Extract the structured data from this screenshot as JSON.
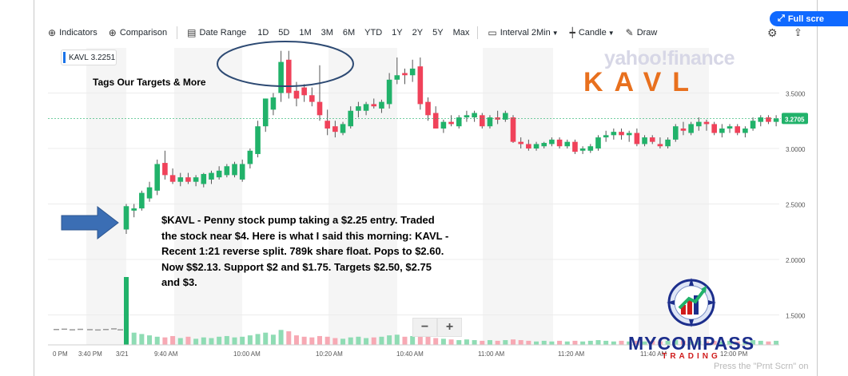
{
  "toolbar": {
    "indicators": "Indicators",
    "comparison": "Comparison",
    "date_range": "Date Range",
    "ranges": [
      "1D",
      "5D",
      "1M",
      "3M",
      "6M",
      "YTD",
      "1Y",
      "2Y",
      "5Y",
      "Max"
    ],
    "interval": "Interval",
    "interval_value": "2Min",
    "chart_style": "Candle",
    "draw": "Draw",
    "fullscreen": "Full scre"
  },
  "ticker_tag": {
    "symbol": "KAVL",
    "price": "3.2251"
  },
  "annotation_tags": "Tags Our Targets & More",
  "watermark": "yahoo!finance",
  "big_ticker": "KAVL",
  "commentary": "$KAVL - Penny stock pump taking a $2.25 entry.  Traded the stock near $4.  Here is what I said this morning: KAVL - Recent 1:21 reverse split. 789k share float.  Pops to $2.60.  Now $$2.13.  Support $2 and $1.75.  Targets $2.50, $2.75 and $3.",
  "logo": {
    "line1": "MYCOMPASS",
    "line2": "TRADING"
  },
  "zoom": {
    "minus": "−",
    "plus": "+"
  },
  "print_hint": "Press the \"Prnt Scrn\" on",
  "colors": {
    "up": "#21b26a",
    "down": "#f0425a",
    "accent": "#0f69ff",
    "arrow": "#3b6eb4",
    "ellipse": "#2d4a73",
    "ticker_orange": "#e8701e"
  },
  "chart_data": {
    "type": "candlestick",
    "y_ticks": [
      "3.5000",
      "3.0000",
      "2.5000",
      "2.0000",
      "1.5000"
    ],
    "x_ticks": [
      "0 PM",
      "3:40 PM",
      "3/21",
      "9:40 AM",
      "10:00 AM",
      "10:20 AM",
      "10:40 AM",
      "11:00 AM",
      "11:20 AM",
      "11:40 AM",
      "12:00 PM"
    ],
    "last_price_label": "3.2705",
    "ylim": [
      1.3,
      3.95
    ],
    "grid": true,
    "candles": [
      {
        "o": 2.27,
        "h": 2.5,
        "l": 2.23,
        "c": 2.48
      },
      {
        "o": 2.44,
        "h": 2.5,
        "l": 2.38,
        "c": 2.46
      },
      {
        "o": 2.46,
        "h": 2.62,
        "l": 2.44,
        "c": 2.6
      },
      {
        "o": 2.55,
        "h": 2.7,
        "l": 2.52,
        "c": 2.65
      },
      {
        "o": 2.62,
        "h": 2.9,
        "l": 2.58,
        "c": 2.86
      },
      {
        "o": 2.87,
        "h": 2.98,
        "l": 2.72,
        "c": 2.76
      },
      {
        "o": 2.76,
        "h": 2.82,
        "l": 2.68,
        "c": 2.7
      },
      {
        "o": 2.7,
        "h": 2.78,
        "l": 2.66,
        "c": 2.74
      },
      {
        "o": 2.74,
        "h": 2.78,
        "l": 2.68,
        "c": 2.7
      },
      {
        "o": 2.7,
        "h": 2.76,
        "l": 2.66,
        "c": 2.74
      },
      {
        "o": 2.68,
        "h": 2.78,
        "l": 2.65,
        "c": 2.77
      },
      {
        "o": 2.72,
        "h": 2.8,
        "l": 2.68,
        "c": 2.78
      },
      {
        "o": 2.74,
        "h": 2.84,
        "l": 2.72,
        "c": 2.8
      },
      {
        "o": 2.76,
        "h": 2.86,
        "l": 2.74,
        "c": 2.84
      },
      {
        "o": 2.76,
        "h": 2.88,
        "l": 2.74,
        "c": 2.86
      },
      {
        "o": 2.72,
        "h": 2.9,
        "l": 2.7,
        "c": 2.86
      },
      {
        "o": 2.86,
        "h": 3.0,
        "l": 2.82,
        "c": 2.98
      },
      {
        "o": 2.95,
        "h": 3.25,
        "l": 2.92,
        "c": 3.2
      },
      {
        "o": 3.2,
        "h": 3.45,
        "l": 3.15,
        "c": 3.45
      },
      {
        "o": 3.35,
        "h": 3.5,
        "l": 3.3,
        "c": 3.46
      },
      {
        "o": 3.5,
        "h": 3.88,
        "l": 3.42,
        "c": 3.78
      },
      {
        "o": 3.8,
        "h": 3.88,
        "l": 3.45,
        "c": 3.5
      },
      {
        "o": 3.52,
        "h": 3.6,
        "l": 3.38,
        "c": 3.45
      },
      {
        "o": 3.55,
        "h": 3.58,
        "l": 3.42,
        "c": 3.48
      },
      {
        "o": 3.48,
        "h": 3.55,
        "l": 3.38,
        "c": 3.42
      },
      {
        "o": 3.42,
        "h": 3.75,
        "l": 3.25,
        "c": 3.3
      },
      {
        "o": 3.25,
        "h": 3.35,
        "l": 3.12,
        "c": 3.18
      },
      {
        "o": 3.2,
        "h": 3.25,
        "l": 3.1,
        "c": 3.15
      },
      {
        "o": 3.14,
        "h": 3.24,
        "l": 3.12,
        "c": 3.22
      },
      {
        "o": 3.2,
        "h": 3.38,
        "l": 3.18,
        "c": 3.34
      },
      {
        "o": 3.34,
        "h": 3.42,
        "l": 3.28,
        "c": 3.38
      },
      {
        "o": 3.34,
        "h": 3.42,
        "l": 3.3,
        "c": 3.4
      },
      {
        "o": 3.4,
        "h": 3.45,
        "l": 3.36,
        "c": 3.38
      },
      {
        "o": 3.36,
        "h": 3.44,
        "l": 3.32,
        "c": 3.42
      },
      {
        "o": 3.4,
        "h": 3.68,
        "l": 3.36,
        "c": 3.62
      },
      {
        "o": 3.62,
        "h": 3.82,
        "l": 3.58,
        "c": 3.66
      },
      {
        "o": 3.68,
        "h": 3.72,
        "l": 3.58,
        "c": 3.66
      },
      {
        "o": 3.66,
        "h": 3.8,
        "l": 3.6,
        "c": 3.72
      },
      {
        "o": 3.74,
        "h": 3.82,
        "l": 3.35,
        "c": 3.4
      },
      {
        "o": 3.42,
        "h": 3.46,
        "l": 3.25,
        "c": 3.3
      },
      {
        "o": 3.32,
        "h": 3.38,
        "l": 3.18,
        "c": 3.18
      },
      {
        "o": 3.18,
        "h": 3.26,
        "l": 3.14,
        "c": 3.24
      },
      {
        "o": 3.24,
        "h": 3.3,
        "l": 3.2,
        "c": 3.22
      },
      {
        "o": 3.2,
        "h": 3.3,
        "l": 3.18,
        "c": 3.28
      },
      {
        "o": 3.28,
        "h": 3.34,
        "l": 3.24,
        "c": 3.3
      },
      {
        "o": 3.28,
        "h": 3.34,
        "l": 3.24,
        "c": 3.32
      },
      {
        "o": 3.3,
        "h": 3.32,
        "l": 3.18,
        "c": 3.2
      },
      {
        "o": 3.2,
        "h": 3.3,
        "l": 3.18,
        "c": 3.28
      },
      {
        "o": 3.28,
        "h": 3.34,
        "l": 3.22,
        "c": 3.26
      },
      {
        "o": 3.26,
        "h": 3.34,
        "l": 3.24,
        "c": 3.32
      },
      {
        "o": 3.28,
        "h": 3.3,
        "l": 3.05,
        "c": 3.06
      },
      {
        "o": 3.06,
        "h": 3.1,
        "l": 3.0,
        "c": 3.04
      },
      {
        "o": 3.04,
        "h": 3.08,
        "l": 2.98,
        "c": 3.0
      },
      {
        "o": 3.0,
        "h": 3.06,
        "l": 2.98,
        "c": 3.04
      },
      {
        "o": 3.02,
        "h": 3.06,
        "l": 3.0,
        "c": 3.05
      },
      {
        "o": 3.04,
        "h": 3.1,
        "l": 3.02,
        "c": 3.08
      },
      {
        "o": 3.08,
        "h": 3.1,
        "l": 3.0,
        "c": 3.02
      },
      {
        "o": 3.02,
        "h": 3.08,
        "l": 3.0,
        "c": 3.06
      },
      {
        "o": 3.06,
        "h": 3.08,
        "l": 2.95,
        "c": 2.97
      },
      {
        "o": 2.98,
        "h": 3.02,
        "l": 2.95,
        "c": 3.0
      },
      {
        "o": 2.98,
        "h": 3.04,
        "l": 2.96,
        "c": 3.02
      },
      {
        "o": 3.0,
        "h": 3.12,
        "l": 2.98,
        "c": 3.1
      },
      {
        "o": 3.1,
        "h": 3.16,
        "l": 3.06,
        "c": 3.12
      },
      {
        "o": 3.12,
        "h": 3.18,
        "l": 3.08,
        "c": 3.15
      },
      {
        "o": 3.15,
        "h": 3.18,
        "l": 3.08,
        "c": 3.12
      },
      {
        "o": 3.12,
        "h": 3.16,
        "l": 3.06,
        "c": 3.14
      },
      {
        "o": 3.14,
        "h": 3.18,
        "l": 3.02,
        "c": 3.04
      },
      {
        "o": 3.04,
        "h": 3.12,
        "l": 3.02,
        "c": 3.1
      },
      {
        "o": 3.1,
        "h": 3.12,
        "l": 3.04,
        "c": 3.06
      },
      {
        "o": 3.04,
        "h": 3.1,
        "l": 3.0,
        "c": 3.02
      },
      {
        "o": 3.02,
        "h": 3.1,
        "l": 3.0,
        "c": 3.08
      },
      {
        "o": 3.08,
        "h": 3.22,
        "l": 3.06,
        "c": 3.2
      },
      {
        "o": 3.18,
        "h": 3.24,
        "l": 3.12,
        "c": 3.16
      },
      {
        "o": 3.14,
        "h": 3.24,
        "l": 3.12,
        "c": 3.22
      },
      {
        "o": 3.2,
        "h": 3.28,
        "l": 3.16,
        "c": 3.24
      },
      {
        "o": 3.24,
        "h": 3.26,
        "l": 3.16,
        "c": 3.22
      },
      {
        "o": 3.22,
        "h": 3.24,
        "l": 3.12,
        "c": 3.14
      },
      {
        "o": 3.14,
        "h": 3.22,
        "l": 3.1,
        "c": 3.18
      },
      {
        "o": 3.18,
        "h": 3.22,
        "l": 3.14,
        "c": 3.2
      },
      {
        "o": 3.2,
        "h": 3.22,
        "l": 3.12,
        "c": 3.14
      },
      {
        "o": 3.14,
        "h": 3.2,
        "l": 3.1,
        "c": 3.18
      },
      {
        "o": 3.18,
        "h": 3.28,
        "l": 3.16,
        "c": 3.25
      },
      {
        "o": 3.24,
        "h": 3.3,
        "l": 3.2,
        "c": 3.28
      },
      {
        "o": 3.28,
        "h": 3.3,
        "l": 3.22,
        "c": 3.24
      },
      {
        "o": 3.24,
        "h": 3.3,
        "l": 3.2,
        "c": 3.27
      }
    ],
    "volumes_pre": [
      0.12,
      0.14,
      0.1,
      0.13,
      0.11,
      0.09,
      0.12,
      0.16,
      0.1
    ],
    "volumes": [
      1.0,
      0.18,
      0.16,
      0.14,
      0.12,
      0.11,
      0.13,
      0.1,
      0.12,
      0.09,
      0.11,
      0.1,
      0.12,
      0.13,
      0.11,
      0.12,
      0.14,
      0.16,
      0.18,
      0.15,
      0.22,
      0.2,
      0.14,
      0.12,
      0.11,
      0.13,
      0.12,
      0.1,
      0.09,
      0.11,
      0.12,
      0.1,
      0.11,
      0.12,
      0.14,
      0.15,
      0.12,
      0.13,
      0.16,
      0.12,
      0.1,
      0.09,
      0.08,
      0.07,
      0.08,
      0.07,
      0.06,
      0.07,
      0.06,
      0.07,
      0.08,
      0.07,
      0.06,
      0.05,
      0.06,
      0.05,
      0.06,
      0.05,
      0.06,
      0.05,
      0.06,
      0.07,
      0.06,
      0.05,
      0.06,
      0.05,
      0.06,
      0.05,
      0.06,
      0.05,
      0.06,
      0.07,
      0.06,
      0.05,
      0.06,
      0.05,
      0.06,
      0.05,
      0.06,
      0.05,
      0.06,
      0.07,
      0.06,
      0.05,
      0.06
    ]
  }
}
